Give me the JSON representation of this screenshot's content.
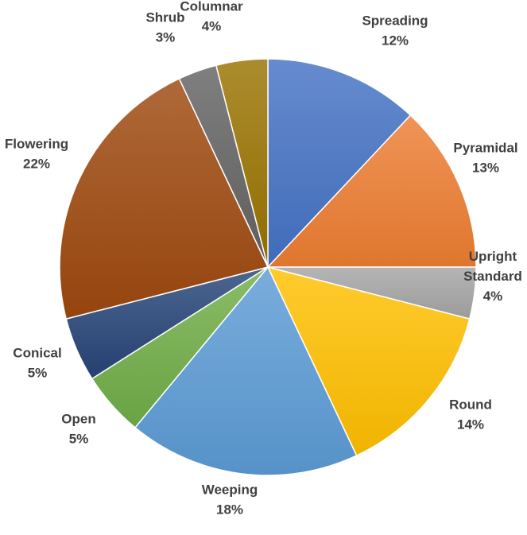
{
  "chart_data": {
    "type": "pie",
    "title": "",
    "slices": [
      {
        "label": "Spreading",
        "value": 12,
        "value_label": "12%",
        "color": "#4472C4"
      },
      {
        "label": "Pyramidal",
        "value": 13,
        "value_label": "13%",
        "color": "#ED7D31"
      },
      {
        "label": "Upright Standard",
        "value": 4,
        "value_label": "4%",
        "color": "#A5A5A5"
      },
      {
        "label": "Round",
        "value": 14,
        "value_label": "14%",
        "color": "#FFC000"
      },
      {
        "label": "Weeping",
        "value": 18,
        "value_label": "18%",
        "color": "#5B9BD5"
      },
      {
        "label": "Open",
        "value": 5,
        "value_label": "5%",
        "color": "#70AD47"
      },
      {
        "label": "Conical",
        "value": 5,
        "value_label": "5%",
        "color": "#264478"
      },
      {
        "label": "Flowering",
        "value": 22,
        "value_label": "22%",
        "color": "#9E480E"
      },
      {
        "label": "Shrub",
        "value": 3,
        "value_label": "3%",
        "color": "#636363"
      },
      {
        "label": "Columnar",
        "value": 4,
        "value_label": "4%",
        "color": "#997300"
      }
    ]
  }
}
